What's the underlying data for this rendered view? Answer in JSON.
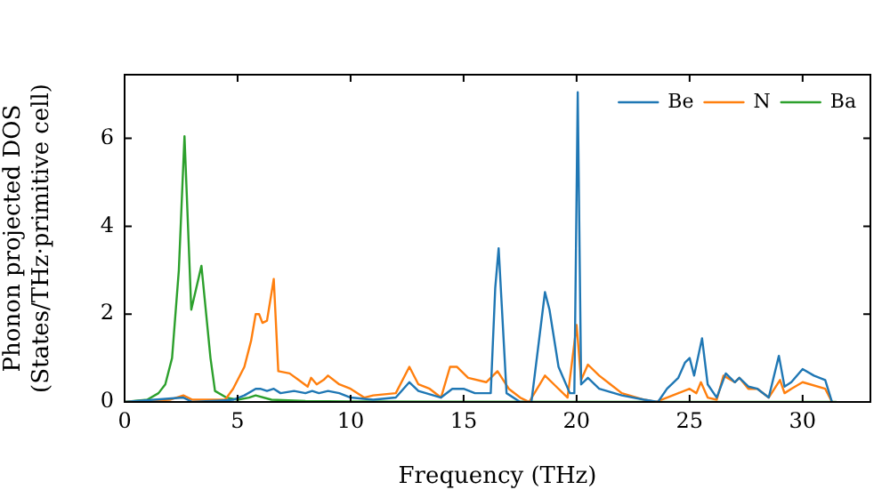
{
  "chart_data": {
    "type": "line",
    "xlabel": "Frequency (THz)",
    "ylabel": "Phonon projected DOS\n(States/THz·primitive cell)",
    "xlim": [
      0,
      33
    ],
    "ylim": [
      0,
      7.45
    ],
    "xticks": [
      0,
      5,
      10,
      15,
      20,
      25,
      30
    ],
    "yticks": [
      0,
      2,
      4,
      6
    ],
    "grid": false,
    "legend": "top right",
    "marker": "none",
    "line_style": "solid",
    "series": [
      {
        "name": "Be",
        "color": "#1f77b4",
        "x": [
          0,
          2.6,
          3,
          4.8,
          5.3,
          5.8,
          6,
          6.3,
          6.6,
          6.9,
          7.5,
          8,
          8.3,
          8.6,
          9,
          9.5,
          10,
          11,
          12,
          12.6,
          13,
          14,
          14.5,
          15,
          15.5,
          16.2,
          16.4,
          16.55,
          16.9,
          17.5,
          18,
          18.6,
          18.8,
          19.2,
          19.7,
          19.9,
          20.05,
          20.2,
          20.5,
          21,
          22,
          23,
          23.6,
          24,
          24.5,
          24.8,
          25,
          25.2,
          25.55,
          25.8,
          26.2,
          26.6,
          27,
          27.2,
          27.6,
          28,
          28.5,
          28.95,
          29.2,
          29.5,
          30,
          30.5,
          31,
          31.3
        ],
        "values": [
          0,
          0.1,
          0,
          0.05,
          0.15,
          0.3,
          0.3,
          0.25,
          0.3,
          0.2,
          0.25,
          0.2,
          0.25,
          0.2,
          0.25,
          0.2,
          0.1,
          0.05,
          0.1,
          0.45,
          0.25,
          0.1,
          0.3,
          0.3,
          0.2,
          0.2,
          2.6,
          3.5,
          0.2,
          0,
          0,
          2.5,
          2.1,
          0.8,
          0.2,
          0.2,
          7.05,
          0.4,
          0.55,
          0.3,
          0.15,
          0.05,
          0,
          0.3,
          0.55,
          0.9,
          1.0,
          0.6,
          1.45,
          0.4,
          0.1,
          0.65,
          0.45,
          0.55,
          0.35,
          0.3,
          0.1,
          1.05,
          0.35,
          0.45,
          0.75,
          0.6,
          0.5,
          0
        ]
      },
      {
        "name": "N",
        "color": "#ff7f0e",
        "x": [
          0,
          2,
          2.6,
          3,
          4.45,
          4.8,
          5.3,
          5.6,
          5.8,
          5.95,
          6.1,
          6.3,
          6.6,
          6.8,
          7.3,
          7.7,
          8.1,
          8.25,
          8.5,
          8.8,
          9,
          9.5,
          10,
          10.6,
          11,
          12,
          12.6,
          13,
          13.5,
          14,
          14.4,
          14.7,
          15.2,
          16,
          16.5,
          17,
          17.5,
          17.9,
          18.6,
          19,
          19.6,
          20,
          20.2,
          20.5,
          21,
          21.5,
          22,
          23,
          23.5,
          24,
          24.5,
          25,
          25.3,
          25.5,
          25.8,
          26.2,
          26.5,
          27,
          27.2,
          27.6,
          28,
          28.5,
          29,
          29.2,
          29.5,
          30,
          31,
          31.3
        ],
        "values": [
          0,
          0.05,
          0.15,
          0.05,
          0.05,
          0.3,
          0.8,
          1.4,
          2.0,
          2.0,
          1.8,
          1.85,
          2.8,
          0.7,
          0.65,
          0.5,
          0.35,
          0.55,
          0.4,
          0.5,
          0.6,
          0.4,
          0.3,
          0.1,
          0.15,
          0.2,
          0.8,
          0.4,
          0.3,
          0.1,
          0.8,
          0.8,
          0.55,
          0.45,
          0.7,
          0.3,
          0.1,
          0,
          0.6,
          0.4,
          0.1,
          1.75,
          0.5,
          0.85,
          0.6,
          0.4,
          0.2,
          0.05,
          0,
          0.1,
          0.2,
          0.3,
          0.2,
          0.45,
          0.1,
          0.05,
          0.6,
          0.45,
          0.55,
          0.3,
          0.3,
          0.1,
          0.5,
          0.2,
          0.3,
          0.45,
          0.3,
          0
        ]
      },
      {
        "name": "Ba",
        "color": "#2ca02c",
        "x": [
          0,
          1,
          1.5,
          1.8,
          2.1,
          2.4,
          2.65,
          2.95,
          3.4,
          3.8,
          4,
          4.5,
          5,
          5.5,
          5.8,
          6.5,
          8,
          10,
          31.5
        ],
        "values": [
          0,
          0.05,
          0.2,
          0.4,
          1.0,
          3.0,
          6.05,
          2.1,
          3.1,
          1.0,
          0.25,
          0.1,
          0.05,
          0.1,
          0.15,
          0.05,
          0.02,
          0.01,
          0
        ]
      }
    ]
  }
}
